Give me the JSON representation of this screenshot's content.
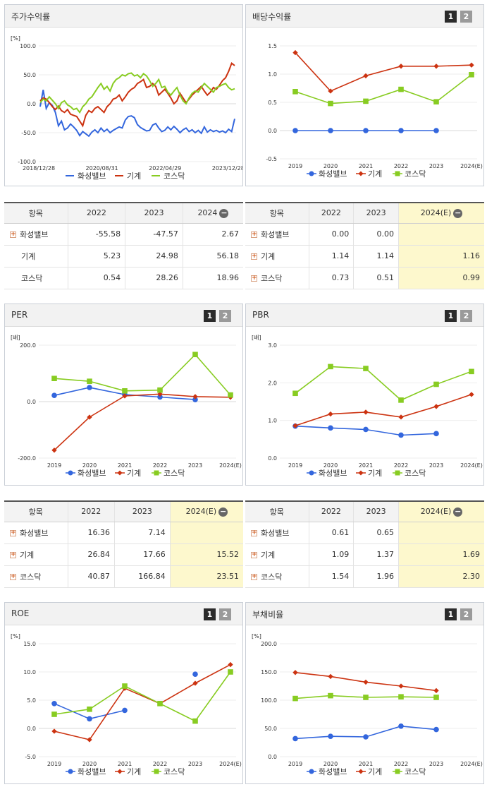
{
  "colors": {
    "valve": "#3366dd",
    "machine": "#cc3311",
    "kosdaq": "#88cc22"
  },
  "legend": [
    "화성밸브",
    "기계",
    "코스닥"
  ],
  "charts": {
    "stock": {
      "title": "주가수익률",
      "unit": "[%]",
      "pagination": null,
      "chart_data": {
        "type": "line",
        "title": "주가수익률",
        "ylabel": "[%]",
        "ylim": [
          -100,
          100
        ],
        "yticks": [
          "100.0",
          "50.0",
          "0.0",
          "-50.0",
          "-100.0"
        ],
        "xticks": [
          "2018/12/28",
          "2020/08/31",
          "2022/04/29",
          "2023/12/28"
        ],
        "series": [
          {
            "name": "화성밸브",
            "values": [
              -5,
              24,
              -8,
              2,
              -3,
              -15,
              -38,
              -30,
              -45,
              -42,
              -35,
              -40,
              -46,
              -55,
              -48,
              -52,
              -56,
              -49,
              -45,
              -50,
              -42,
              -48,
              -44,
              -50,
              -46,
              -43,
              -40,
              -42,
              -28,
              -22,
              -21,
              -24,
              -36,
              -41,
              -44,
              -47,
              -46,
              -37,
              -34,
              -42,
              -48,
              -46,
              -40,
              -45,
              -39,
              -44,
              -50,
              -45,
              -42,
              -48,
              -45,
              -50,
              -46,
              -51,
              -40,
              -49,
              -45,
              -48,
              -46,
              -49,
              -47,
              -50,
              -44,
              -48,
              -26
            ]
          },
          {
            "name": "기계",
            "values": [
              5,
              10,
              8,
              2,
              -5,
              -10,
              -4,
              -12,
              -15,
              -10,
              -18,
              -20,
              -22,
              -30,
              -38,
              -20,
              -12,
              -15,
              -8,
              -5,
              -10,
              -15,
              -5,
              0,
              8,
              10,
              15,
              5,
              12,
              20,
              25,
              28,
              35,
              38,
              42,
              28,
              30,
              35,
              30,
              15,
              20,
              25,
              18,
              10,
              0,
              5,
              18,
              10,
              2,
              8,
              15,
              20,
              25,
              30,
              22,
              15,
              20,
              28,
              25,
              32,
              40,
              45,
              56,
              70,
              66
            ]
          },
          {
            "name": "코스닥",
            "values": [
              2,
              8,
              5,
              12,
              6,
              0,
              -8,
              2,
              5,
              -2,
              -5,
              -10,
              -8,
              -15,
              -5,
              0,
              8,
              12,
              20,
              28,
              35,
              25,
              30,
              22,
              35,
              42,
              45,
              50,
              48,
              52,
              53,
              48,
              50,
              45,
              52,
              48,
              40,
              30,
              35,
              42,
              28,
              30,
              20,
              15,
              22,
              28,
              15,
              5,
              0,
              10,
              18,
              22,
              20,
              28,
              35,
              30,
              25,
              20,
              28,
              30,
              33,
              35,
              28,
              24,
              26
            ]
          }
        ]
      }
    },
    "dividend": {
      "title": "배당수익률",
      "pagination": [
        "1",
        "2"
      ],
      "chart_data": {
        "type": "line",
        "title": "배당수익률",
        "ylim": [
          -0.5,
          1.5
        ],
        "yticks": [
          "1.5",
          "1.0",
          "0.5",
          "0.0",
          "-0.5"
        ],
        "categories": [
          "2019",
          "2020",
          "2021",
          "2022",
          "2023",
          "2024(E)"
        ],
        "series": [
          {
            "name": "화성밸브",
            "values": [
              0.0,
              0.0,
              0.0,
              0.0,
              0.0,
              null
            ]
          },
          {
            "name": "기계",
            "values": [
              1.38,
              0.7,
              0.97,
              1.14,
              1.14,
              1.16
            ]
          },
          {
            "name": "코스닥",
            "values": [
              0.69,
              0.48,
              0.52,
              0.73,
              0.51,
              0.99
            ]
          }
        ]
      }
    },
    "per": {
      "title": "PER",
      "unit": "[배]",
      "pagination": [
        "1",
        "2"
      ],
      "chart_data": {
        "type": "line",
        "title": "PER",
        "ylabel": "[배]",
        "ylim": [
          -200,
          200
        ],
        "yticks": [
          "200.0",
          "0.0",
          "-200.0"
        ],
        "categories": [
          "2019",
          "2020",
          "2021",
          "2022",
          "2023",
          "2024(E)"
        ],
        "series": [
          {
            "name": "화성밸브",
            "values": [
              22,
              50,
              25,
              16.36,
              7.14,
              null
            ]
          },
          {
            "name": "기계",
            "values": [
              -172,
              -55,
              20,
              26.84,
              17.66,
              15.52
            ]
          },
          {
            "name": "코스닥",
            "values": [
              82,
              72,
              38,
              40.87,
              166.84,
              23.51
            ]
          }
        ]
      }
    },
    "pbr": {
      "title": "PBR",
      "unit": "[배]",
      "pagination": [
        "1",
        "2"
      ],
      "chart_data": {
        "type": "line",
        "title": "PBR",
        "ylabel": "[배]",
        "ylim": [
          0,
          3
        ],
        "yticks": [
          "3.0",
          "2.0",
          "1.0",
          "0.0"
        ],
        "categories": [
          "2019",
          "2020",
          "2021",
          "2022",
          "2023",
          "2024(E)"
        ],
        "series": [
          {
            "name": "화성밸브",
            "values": [
              0.85,
              0.8,
              0.76,
              0.61,
              0.65,
              null
            ]
          },
          {
            "name": "기계",
            "values": [
              0.86,
              1.17,
              1.22,
              1.09,
              1.37,
              1.69
            ]
          },
          {
            "name": "코스닥",
            "values": [
              1.72,
              2.43,
              2.38,
              1.54,
              1.96,
              2.3
            ]
          }
        ]
      }
    },
    "roe": {
      "title": "ROE",
      "unit": "[%]",
      "pagination": [
        "1",
        "2"
      ],
      "chart_data": {
        "type": "line",
        "title": "ROE",
        "ylabel": "[%]",
        "ylim": [
          -5,
          15
        ],
        "yticks": [
          "15.0",
          "10.0",
          "5.0",
          "0.0",
          "-5.0"
        ],
        "categories": [
          "2019",
          "2020",
          "2021",
          "2022",
          "2023",
          "2024(E)"
        ],
        "series": [
          {
            "name": "화성밸브",
            "values": [
              4.4,
              1.7,
              3.2,
              null,
              9.6,
              null
            ]
          },
          {
            "name": "기계",
            "values": [
              -0.5,
              -2.0,
              7.1,
              4.4,
              8.0,
              11.3
            ]
          },
          {
            "name": "코스닥",
            "values": [
              2.5,
              3.4,
              7.5,
              4.4,
              1.3,
              10.0
            ]
          }
        ]
      }
    },
    "debt": {
      "title": "부채비율",
      "unit": "[%]",
      "pagination": [
        "1",
        "2"
      ],
      "chart_data": {
        "type": "line",
        "title": "부채비율",
        "ylabel": "[%]",
        "ylim": [
          0,
          200
        ],
        "yticks": [
          "200.0",
          "150.0",
          "100.0",
          "50.0",
          "0.0"
        ],
        "categories": [
          "2019",
          "2020",
          "2021",
          "2022",
          "2023",
          "2024(E)"
        ],
        "series": [
          {
            "name": "화성밸브",
            "values": [
              32,
              36,
              35,
              54,
              48,
              null
            ]
          },
          {
            "name": "기계",
            "values": [
              149,
              142,
              132,
              125,
              117,
              null
            ]
          },
          {
            "name": "코스닥",
            "values": [
              103,
              108,
              105,
              106,
              105,
              null
            ]
          }
        ]
      }
    }
  },
  "tables": {
    "stock": {
      "headers": [
        "항목",
        "2022",
        "2023",
        "2024"
      ],
      "rows": [
        {
          "name": "화성밸브",
          "expand": true,
          "values": [
            "-55.58",
            "-47.57",
            "2.67"
          ]
        },
        {
          "name": "기계",
          "expand": false,
          "values": [
            "5.23",
            "24.98",
            "56.18"
          ]
        },
        {
          "name": "코스닥",
          "expand": false,
          "values": [
            "0.54",
            "28.26",
            "18.96"
          ]
        }
      ]
    },
    "dividend": {
      "headers": [
        "항목",
        "2022",
        "2023",
        "2024(E)"
      ],
      "rows": [
        {
          "name": "화성밸브",
          "expand": true,
          "values": [
            "0.00",
            "0.00",
            ""
          ]
        },
        {
          "name": "기계",
          "expand": true,
          "values": [
            "1.14",
            "1.14",
            "1.16"
          ]
        },
        {
          "name": "코스닥",
          "expand": true,
          "values": [
            "0.73",
            "0.51",
            "0.99"
          ]
        }
      ]
    },
    "per": {
      "headers": [
        "항목",
        "2022",
        "2023",
        "2024(E)"
      ],
      "rows": [
        {
          "name": "화성밸브",
          "expand": true,
          "values": [
            "16.36",
            "7.14",
            ""
          ]
        },
        {
          "name": "기계",
          "expand": true,
          "values": [
            "26.84",
            "17.66",
            "15.52"
          ]
        },
        {
          "name": "코스닥",
          "expand": true,
          "values": [
            "40.87",
            "166.84",
            "23.51"
          ]
        }
      ]
    },
    "pbr": {
      "headers": [
        "항목",
        "2022",
        "2023",
        "2024(E)"
      ],
      "rows": [
        {
          "name": "화성밸브",
          "expand": true,
          "values": [
            "0.61",
            "0.65",
            ""
          ]
        },
        {
          "name": "기계",
          "expand": true,
          "values": [
            "1.09",
            "1.37",
            "1.69"
          ]
        },
        {
          "name": "코스닥",
          "expand": true,
          "values": [
            "1.54",
            "1.96",
            "2.30"
          ]
        }
      ]
    }
  }
}
